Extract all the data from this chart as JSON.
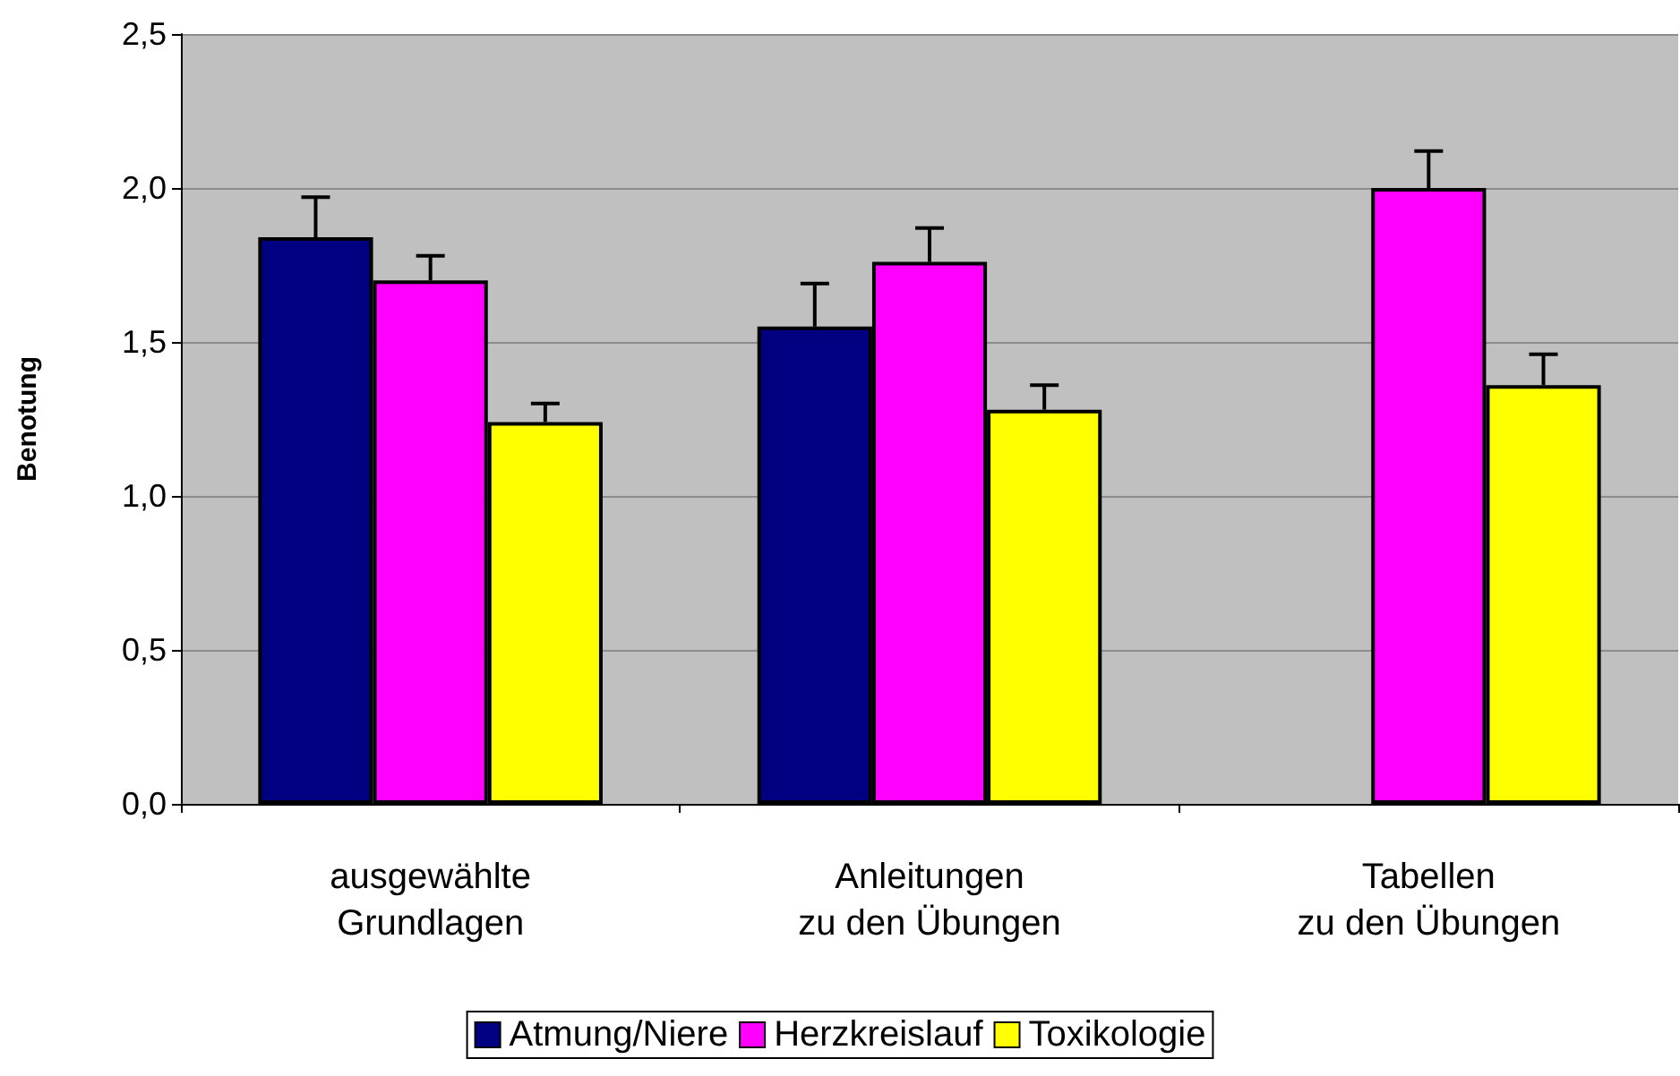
{
  "chart_data": {
    "type": "bar",
    "ylabel": "Benotung",
    "categories": [
      "ausgewählte\nGrundlagen",
      "Anleitungen\nzu den Übungen",
      "Tabellen\nzu den Übungen"
    ],
    "series": [
      {
        "name": "Atmung/Niere",
        "color": "#000080",
        "values": [
          1.84,
          1.55,
          null
        ],
        "errors": [
          [
            1.84,
            1.97
          ],
          [
            1.55,
            1.69
          ],
          null
        ]
      },
      {
        "name": "Herzkreislauf",
        "color": "#ff00ff",
        "values": [
          1.7,
          1.76,
          2.0
        ],
        "errors": [
          [
            1.7,
            1.78
          ],
          [
            1.76,
            1.87
          ],
          [
            2.0,
            2.12
          ]
        ]
      },
      {
        "name": "Toxikologie",
        "color": "#ffff00",
        "values": [
          1.24,
          1.28,
          1.36
        ],
        "errors": [
          [
            1.24,
            1.3
          ],
          [
            1.28,
            1.36
          ],
          [
            1.36,
            1.46
          ]
        ]
      }
    ],
    "ylim": [
      0,
      2.5
    ],
    "yticks": [
      {
        "value": 0,
        "label": "0,0"
      },
      {
        "value": 0.5,
        "label": "0,5"
      },
      {
        "value": 1,
        "label": "1,0"
      },
      {
        "value": 1.5,
        "label": "1,5"
      },
      {
        "value": 2,
        "label": "2,0"
      },
      {
        "value": 2.5,
        "label": "2,5"
      }
    ],
    "grid": "y",
    "legend": "bottom"
  }
}
